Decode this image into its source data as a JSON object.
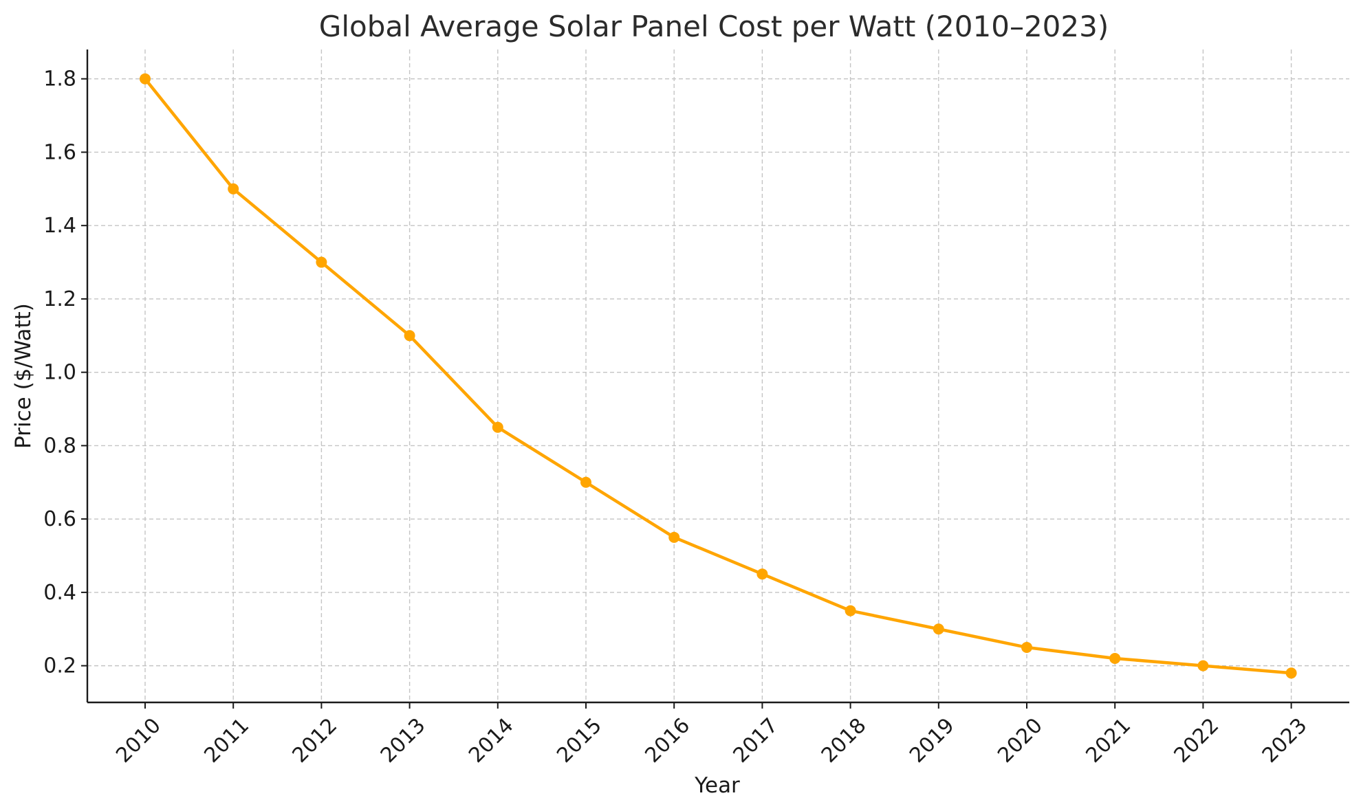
{
  "chart_data": {
    "type": "line",
    "title": "Global Average Solar Panel Cost per Watt (2010–2023)",
    "xlabel": "Year",
    "ylabel": "Price ($/Watt)",
    "categories": [
      "2010",
      "2011",
      "2012",
      "2013",
      "2014",
      "2015",
      "2016",
      "2017",
      "2018",
      "2019",
      "2020",
      "2021",
      "2022",
      "2023"
    ],
    "series": [
      {
        "values": [
          1.8,
          1.5,
          1.3,
          1.1,
          0.85,
          0.7,
          0.55,
          0.45,
          0.35,
          0.3,
          0.25,
          0.22,
          0.2,
          0.18
        ],
        "color": "#FFA500"
      }
    ],
    "ylim": [
      0.1,
      1.88
    ],
    "yticks": [
      "0.2",
      "0.4",
      "0.6",
      "0.8",
      "1.0",
      "1.2",
      "1.4",
      "1.6",
      "1.8"
    ],
    "grid": true,
    "marker": "circle",
    "x_tick_rotation_deg": 45,
    "axes_color": "#1a1a1a",
    "grid_color": "#c4c4c4"
  }
}
